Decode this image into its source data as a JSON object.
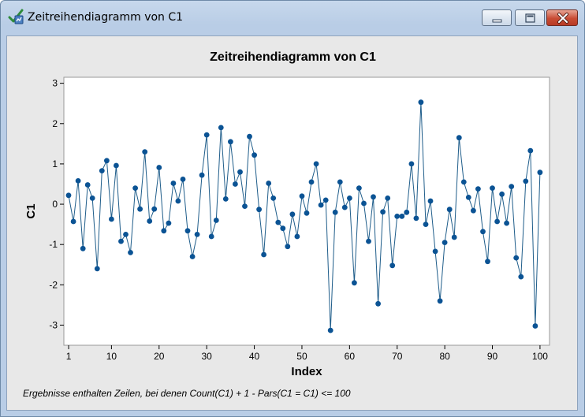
{
  "window": {
    "title": "Zeitreihendiagramm von C1",
    "colors": {
      "frame": "#b9cde6",
      "close_button": "#c84c34",
      "client_bg": "#e8e8e8"
    },
    "icons": [
      "minitab-graph-icon",
      "minimize-icon",
      "maximize-icon",
      "close-icon"
    ]
  },
  "footnote": "Ergebnisse enthalten Zeilen, bei denen Count(C1) + 1 - Pars(C1 = C1) <= 100",
  "chart_data": {
    "type": "line",
    "title": "Zeitreihendiagramm von C1",
    "xlabel": "Index",
    "ylabel": "C1",
    "xlim": [
      0,
      102
    ],
    "ylim": [
      -3.5,
      3.15
    ],
    "xticks": [
      1,
      10,
      20,
      30,
      40,
      50,
      60,
      70,
      80,
      90,
      100
    ],
    "yticks": [
      -3,
      -2,
      -1,
      0,
      1,
      2,
      3
    ],
    "grid": false,
    "line_color": "#1f5d8a",
    "marker_color": "#0b5394",
    "series": [
      {
        "x": [
          1,
          2,
          3,
          4,
          5,
          6,
          7,
          8,
          9,
          10,
          11,
          12,
          13,
          14,
          15,
          16,
          17,
          18,
          19,
          20,
          21,
          22,
          23,
          24,
          25,
          26,
          27,
          28,
          29,
          30,
          31,
          32,
          33,
          34,
          35,
          36,
          37,
          38,
          39,
          40,
          41,
          42,
          43,
          44,
          45,
          46,
          47,
          48,
          49,
          50,
          51,
          52,
          53,
          54,
          55,
          56,
          57,
          58,
          59,
          60,
          61,
          62,
          63,
          64,
          65,
          66,
          67,
          68,
          69,
          70,
          71,
          72,
          73,
          74,
          75,
          76,
          77,
          78,
          79,
          80,
          81,
          82,
          83,
          84,
          85,
          86,
          87,
          88,
          89,
          90,
          91,
          92,
          93,
          94,
          95,
          96,
          97,
          98,
          99,
          100
        ],
        "values": [
          0.22,
          -0.43,
          0.58,
          -1.1,
          0.48,
          0.15,
          -1.6,
          0.83,
          1.08,
          -0.37,
          0.96,
          -0.92,
          -0.75,
          -1.2,
          0.4,
          -0.12,
          1.3,
          -0.42,
          -0.12,
          0.91,
          -0.66,
          -0.47,
          0.52,
          0.08,
          0.62,
          -0.66,
          -1.3,
          -0.75,
          0.72,
          1.72,
          -0.8,
          -0.4,
          1.9,
          0.13,
          1.55,
          0.5,
          0.8,
          -0.05,
          1.68,
          1.22,
          -0.13,
          -1.25,
          0.52,
          0.15,
          -0.45,
          -0.6,
          -1.05,
          -0.25,
          -0.8,
          0.2,
          -0.22,
          0.55,
          1.0,
          -0.02,
          0.1,
          -3.13,
          -0.2,
          0.55,
          -0.08,
          0.15,
          -1.95,
          0.4,
          0.02,
          -0.92,
          0.18,
          -2.47,
          -0.19,
          0.15,
          -1.52,
          -0.3,
          -0.3,
          -0.2,
          1.0,
          -0.35,
          2.53,
          -0.5,
          0.08,
          -1.17,
          -2.4,
          -0.95,
          -0.13,
          -0.82,
          1.65,
          0.55,
          0.17,
          -0.16,
          0.38,
          -0.68,
          -1.42,
          0.4,
          -0.43,
          0.25,
          -0.47,
          0.44,
          -1.33,
          -1.8,
          0.57,
          1.33,
          -3.02,
          0.79
        ]
      }
    ]
  }
}
